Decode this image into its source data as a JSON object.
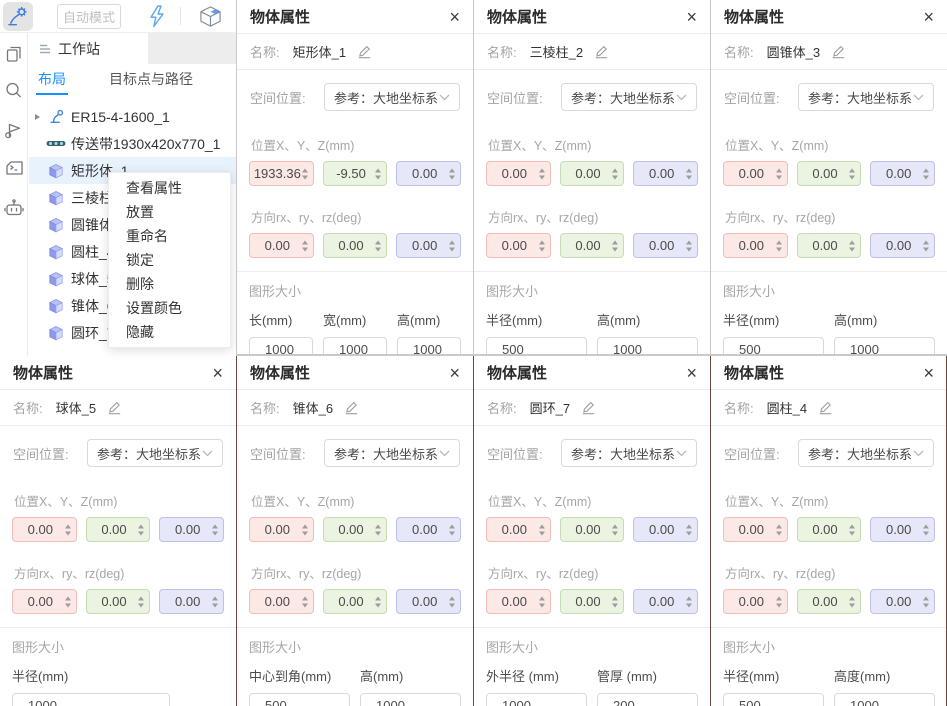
{
  "topbar": {
    "auto_mode_label": "自动模式"
  },
  "sidebar": {
    "title": "工作站",
    "tabs": [
      {
        "label": "布局",
        "active": true
      },
      {
        "label": "目标点与路径",
        "active": false
      }
    ],
    "tree": [
      {
        "label": "ER15-4-1600_1",
        "icon": "robot-arm-icon",
        "expandable": true
      },
      {
        "label": "传送带1930x420x770_1",
        "icon": "conveyor-icon"
      },
      {
        "label": "矩形体_1",
        "icon": "cube-icon",
        "selected": true
      },
      {
        "label": "三棱柱_2",
        "icon": "cube-icon"
      },
      {
        "label": "圆锥体_3",
        "icon": "cube-icon"
      },
      {
        "label": "圆柱_4",
        "icon": "cube-icon"
      },
      {
        "label": "球体_5",
        "icon": "cube-icon"
      },
      {
        "label": "锥体_6",
        "icon": "cube-icon"
      },
      {
        "label": "圆环_7",
        "icon": "cube-icon"
      }
    ]
  },
  "context_menu": {
    "items": [
      "查看属性",
      "放置",
      "重命名",
      "锁定",
      "删除",
      "设置颜色",
      "隐藏"
    ]
  },
  "panel_common": {
    "title": "物体属性",
    "close_glyph": "×",
    "name_label": "名称:",
    "position_label": "空间位置:",
    "reference_value": "参考：大地坐标系",
    "xyz_label": "位置X、Y、Z(mm)",
    "rot_label": "方向rx、ry、rz(deg)",
    "size_label": "图形大小"
  },
  "panels": [
    {
      "name": "矩形体_1",
      "pos": [
        "1933.36",
        "-9.50",
        "0.00"
      ],
      "rot": [
        "0.00",
        "0.00",
        "0.00"
      ],
      "dims": [
        {
          "label": "长(mm)",
          "value": "1000"
        },
        {
          "label": "宽(mm)",
          "value": "1000"
        },
        {
          "label": "高(mm)",
          "value": "1000"
        }
      ]
    },
    {
      "name": "三棱柱_2",
      "pos": [
        "0.00",
        "0.00",
        "0.00"
      ],
      "rot": [
        "0.00",
        "0.00",
        "0.00"
      ],
      "dims": [
        {
          "label": "半径(mm)",
          "value": "500"
        },
        {
          "label": "高(mm)",
          "value": "1000"
        }
      ]
    },
    {
      "name": "圆锥体_3",
      "pos": [
        "0.00",
        "0.00",
        "0.00"
      ],
      "rot": [
        "0.00",
        "0.00",
        "0.00"
      ],
      "dims": [
        {
          "label": "半径(mm)",
          "value": "500"
        },
        {
          "label": "高(mm)",
          "value": "1000"
        }
      ]
    },
    {
      "name": "球体_5",
      "pos": [
        "0.00",
        "0.00",
        "0.00"
      ],
      "rot": [
        "0.00",
        "0.00",
        "0.00"
      ],
      "dims": [
        {
          "label": "半径(mm)",
          "value": "1000"
        }
      ]
    },
    {
      "name": "锥体_6",
      "pos": [
        "0.00",
        "0.00",
        "0.00"
      ],
      "rot": [
        "0.00",
        "0.00",
        "0.00"
      ],
      "dims": [
        {
          "label": "中心到角(mm)",
          "value": "500"
        },
        {
          "label": "高(mm)",
          "value": "1000"
        }
      ]
    },
    {
      "name": "圆环_7",
      "pos": [
        "0.00",
        "0.00",
        "0.00"
      ],
      "rot": [
        "0.00",
        "0.00",
        "0.00"
      ],
      "dims": [
        {
          "label": "外半径 (mm)",
          "value": "1000"
        },
        {
          "label": "管厚 (mm)",
          "value": "200"
        }
      ]
    },
    {
      "name": "圆柱_4",
      "pos": [
        "0.00",
        "0.00",
        "0.00"
      ],
      "rot": [
        "0.00",
        "0.00",
        "0.00"
      ],
      "dims": [
        {
          "label": "半径(mm)",
          "value": "500"
        },
        {
          "label": "高度(mm)",
          "value": "1000"
        }
      ]
    }
  ],
  "colors": {
    "accent": "#1890ff",
    "input_x_bg": "#fce8e5",
    "input_y_bg": "#eaf4e0",
    "input_z_bg": "#e6e7f9",
    "scene_gap": "#6e453f"
  }
}
